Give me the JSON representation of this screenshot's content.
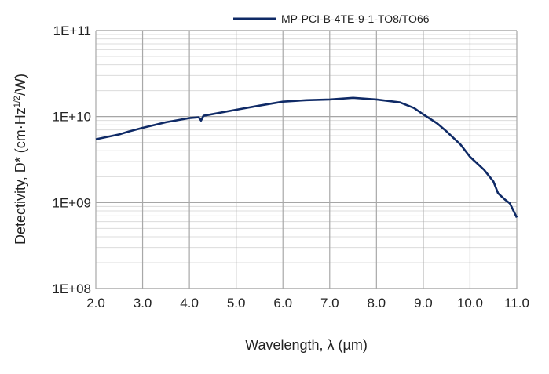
{
  "chart_data": {
    "type": "line",
    "title": "",
    "xlabel": "Wavelength, λ (µm)",
    "ylabel_main": "Detectivity, D* (cm·Hz",
    "ylabel_sup": "1/2",
    "ylabel_end": "/W)",
    "xlim": [
      2.0,
      11.0
    ],
    "ylim": [
      100000000.0,
      100000000000.0
    ],
    "yscale": "log",
    "grid": true,
    "legend_position": "top-right",
    "x_ticks": [
      "2.0",
      "3.0",
      "4.0",
      "5.0",
      "6.0",
      "7.0",
      "8.0",
      "9.0",
      "10.0",
      "11.0"
    ],
    "y_ticks": [
      "1E+08",
      "1E+09",
      "1E+10",
      "1E+11"
    ],
    "series": [
      {
        "name": "MP-PCI-B-4TE-9-1-TO8/TO66",
        "color": "#0f2a66",
        "x": [
          2.0,
          2.5,
          2.7,
          3.0,
          3.5,
          4.0,
          4.2,
          4.25,
          4.3,
          5.0,
          5.5,
          6.0,
          6.5,
          7.0,
          7.5,
          8.0,
          8.5,
          8.8,
          9.0,
          9.3,
          9.5,
          9.8,
          10.0,
          10.3,
          10.5,
          10.6,
          10.75,
          10.85,
          11.0
        ],
        "y": [
          5450000000.0,
          6200000000.0,
          6700000000.0,
          7400000000.0,
          8600000000.0,
          9600000000.0,
          9800000000.0,
          9000000000.0,
          10200000000.0,
          12000000000.0,
          13400000000.0,
          14900000000.0,
          15500000000.0,
          15800000000.0,
          16500000000.0,
          15800000000.0,
          14600000000.0,
          12600000000.0,
          10600000000.0,
          8300000000.0,
          6700000000.0,
          4700000000.0,
          3400000000.0,
          2400000000.0,
          1760000000.0,
          1280000000.0,
          1080000000.0,
          980000000.0,
          670000000.0
        ]
      }
    ]
  }
}
